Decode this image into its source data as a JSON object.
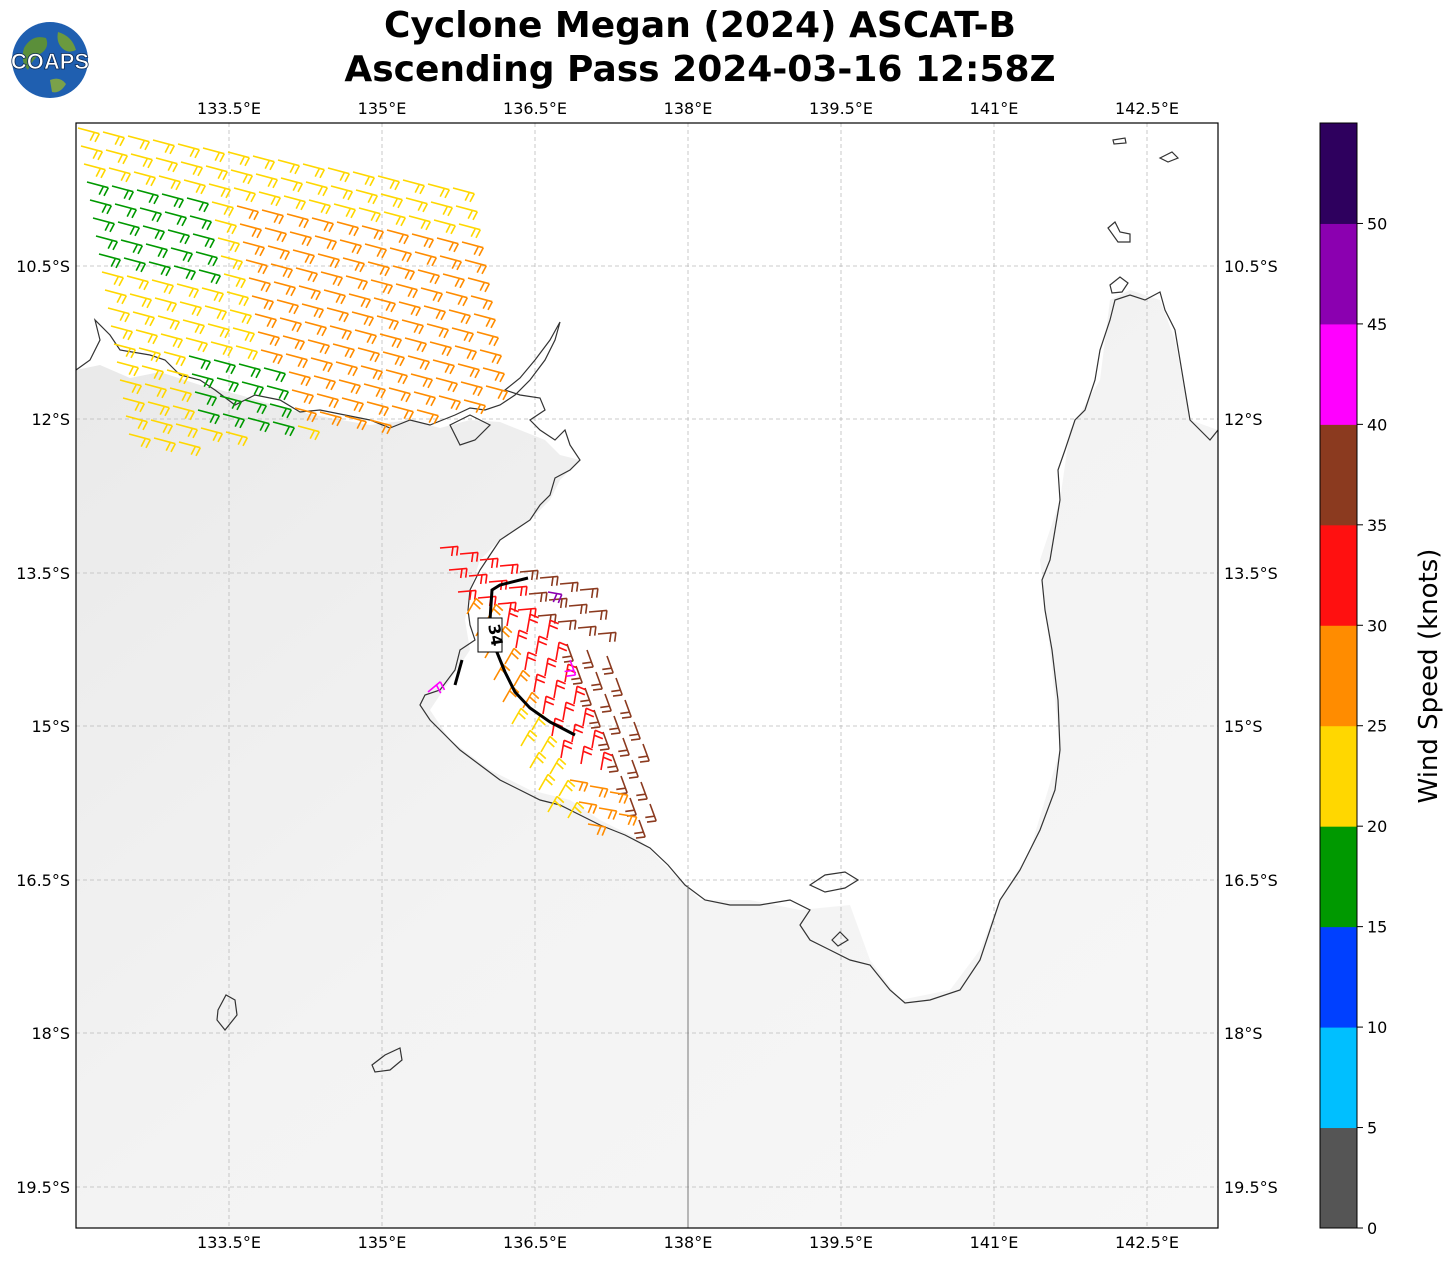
{
  "title": {
    "line1": "Cyclone Megan (2024) ASCAT-B",
    "line2": "Ascending Pass 2024-03-16 12:58Z"
  },
  "logo": {
    "text": "COAPS",
    "icon": "globe-logo-icon"
  },
  "axes": {
    "lon_ticks": [
      "133.5°E",
      "135°E",
      "136.5°E",
      "138°E",
      "139.5°E",
      "141°E",
      "142.5°E"
    ],
    "lat_ticks": [
      "10.5°S",
      "12°S",
      "13.5°S",
      "15°S",
      "16.5°S",
      "18°S",
      "19.5°S"
    ],
    "grid": true
  },
  "colorbar": {
    "label": "Wind Speed (knots)",
    "ticks": [
      "0",
      "5",
      "10",
      "15",
      "20",
      "25",
      "30",
      "35",
      "40",
      "45",
      "50"
    ],
    "colors": [
      "#555555",
      "#00bfff",
      "#0040ff",
      "#009900",
      "#ffd700",
      "#ff8c00",
      "#ff1010",
      "#8b3a1f",
      "#ff00ff",
      "#8b00b0",
      "#2e005e"
    ]
  },
  "radii": {
    "label": "34"
  },
  "wind_colors": {
    "green": "#009900",
    "yellow": "#ffd700",
    "orange": "#ff8c00",
    "red": "#ff1010",
    "brown": "#8b3a1f",
    "magenta": "#ff00ff",
    "purple": "#8b00b0"
  }
}
